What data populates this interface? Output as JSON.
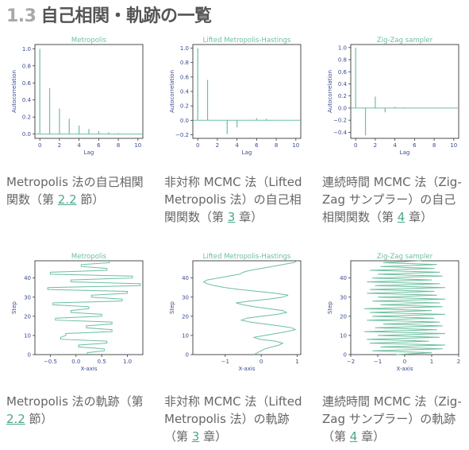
{
  "heading": {
    "number": "1.3",
    "title": "自己相関・軌跡の一覧"
  },
  "colors": {
    "line": "#6cbf9f",
    "tick_text": "#3b4a8f",
    "link": "#4aa890"
  },
  "chart_data": [
    {
      "type": "bar",
      "title": "Metropolis",
      "xlabel": "Lag",
      "ylabel": "Autocorrelation",
      "xlim": [
        -0.5,
        10.5
      ],
      "ylim": [
        -0.05,
        1.05
      ],
      "xticks": [
        "0",
        "2",
        "4",
        "6",
        "8",
        "10"
      ],
      "yticks": [
        "0.0",
        "0.2",
        "0.4",
        "0.6",
        "0.8",
        "1.0"
      ],
      "x": [
        0,
        1,
        2,
        3,
        4,
        5,
        6,
        7,
        8,
        9,
        10
      ],
      "values": [
        1.0,
        0.54,
        0.3,
        0.18,
        0.1,
        0.06,
        0.035,
        0.02,
        0.012,
        0.006,
        0.003
      ]
    },
    {
      "type": "bar",
      "title": "Lifted Metropolis-Hastings",
      "xlabel": "Lag",
      "ylabel": "Autocorrelation",
      "xlim": [
        -0.5,
        10.5
      ],
      "ylim": [
        -0.25,
        1.05
      ],
      "xticks": [
        "0",
        "2",
        "4",
        "6",
        "8",
        "10"
      ],
      "yticks": [
        "−0.2",
        "0.0",
        "0.2",
        "0.4",
        "0.6",
        "0.8",
        "1.0"
      ],
      "x": [
        0,
        1,
        2,
        3,
        4,
        5,
        6,
        7,
        8,
        9,
        10
      ],
      "values": [
        1.0,
        0.56,
        0.0,
        -0.19,
        -0.1,
        0.0,
        0.03,
        0.02,
        0.0,
        0.0,
        0.0
      ]
    },
    {
      "type": "bar",
      "title": "Zig-Zag sampler",
      "xlabel": "Lag",
      "ylabel": "Autocorrelation",
      "xlim": [
        -0.5,
        10.5
      ],
      "ylim": [
        -0.5,
        1.05
      ],
      "xticks": [
        "0",
        "2",
        "4",
        "6",
        "8",
        "10"
      ],
      "yticks": [
        "−0.4",
        "−0.2",
        "0.0",
        "0.2",
        "0.4",
        "0.6",
        "0.8",
        "1.0"
      ],
      "x": [
        0,
        1,
        2,
        3,
        4,
        5,
        6,
        7,
        8,
        9,
        10
      ],
      "values": [
        1.0,
        -0.45,
        0.19,
        -0.07,
        0.02,
        -0.01,
        0.0,
        0.0,
        0.005,
        0.0,
        0.0
      ]
    },
    {
      "type": "line",
      "title": "Metropolis",
      "xlabel": "X-axis",
      "ylabel": "Step",
      "xlim": [
        -0.8,
        1.3
      ],
      "ylim": [
        0,
        49
      ],
      "xticks": [
        "−0.5",
        "0.0",
        "0.5",
        "1.0"
      ],
      "xtick_values": [
        -0.5,
        0,
        0.5,
        1.0
      ],
      "yticks": [
        "0",
        "10",
        "20",
        "30",
        "40"
      ],
      "x": [
        0.22,
        0.22,
        0.55,
        0.55,
        0.05,
        0.05,
        0.6,
        0.6,
        -0.3,
        -0.3,
        -0.2,
        -0.2,
        0.7,
        0.7,
        0.2,
        0.2,
        0.7,
        0.7,
        -0.4,
        -0.4,
        0.5,
        0.5,
        -0.1,
        -0.1,
        0.25,
        0.25,
        -0.45,
        -0.45,
        0.9,
        0.9,
        0.3,
        0.3,
        1.0,
        1.0,
        -0.55,
        -0.55,
        1.25,
        1.25,
        -0.1,
        -0.1,
        1.1,
        1.1,
        -0.5,
        -0.5,
        0.6,
        0.6,
        0.1,
        0.1,
        0.65,
        0.65
      ],
      "y": [
        0,
        1,
        2,
        3,
        4,
        5,
        6,
        7,
        8,
        9,
        10,
        11,
        12,
        13,
        14,
        15,
        16,
        17,
        18,
        19,
        20,
        21,
        22,
        23,
        24,
        25,
        26,
        27,
        28,
        29,
        30,
        31,
        32,
        33,
        34,
        35,
        36,
        37,
        38,
        39,
        40,
        41,
        42,
        43,
        44,
        45,
        46,
        47,
        48,
        49
      ]
    },
    {
      "type": "line",
      "title": "Lifted Metropolis-Hastings",
      "xlabel": "X-axis",
      "ylabel": "Step",
      "xlim": [
        -1.9,
        1.1
      ],
      "ylim": [
        0,
        49
      ],
      "xticks": [
        "−1",
        "0",
        "1"
      ],
      "xtick_values": [
        -1,
        0,
        1
      ],
      "yticks": [
        "0",
        "10",
        "20",
        "30",
        "40"
      ],
      "x": [
        -0.2,
        -0.1,
        0.0,
        0.1,
        0.3,
        0.5,
        0.6,
        0.4,
        -0.05,
        -0.2,
        0.1,
        0.4,
        0.7,
        0.95,
        0.85,
        0.5,
        0.1,
        -0.3,
        -0.55,
        -0.4,
        0.0,
        0.45,
        0.7,
        0.6,
        0.2,
        -0.2,
        -0.5,
        -0.7,
        -0.3,
        0.2,
        0.6,
        0.75,
        0.4,
        -0.1,
        -0.6,
        -1.0,
        -1.3,
        -1.5,
        -1.6,
        -1.5,
        -1.2,
        -0.9,
        -0.6,
        -0.5,
        -0.3,
        0.0,
        0.3,
        0.6,
        0.9,
        1.0
      ],
      "y": [
        0,
        1,
        2,
        3,
        4,
        5,
        6,
        7,
        8,
        9,
        10,
        11,
        12,
        13,
        14,
        15,
        16,
        17,
        18,
        19,
        20,
        21,
        22,
        23,
        24,
        25,
        26,
        27,
        28,
        29,
        30,
        31,
        32,
        33,
        34,
        35,
        36,
        37,
        38,
        39,
        40,
        41,
        42,
        43,
        44,
        45,
        46,
        47,
        48,
        49
      ]
    },
    {
      "type": "line",
      "title": "Zig-Zag sampler",
      "xlabel": "X-axis",
      "ylabel": "Step",
      "xlim": [
        -2,
        2
      ],
      "ylim": [
        0,
        49
      ],
      "xticks": [
        "−2",
        "−1",
        "0",
        "1",
        "2"
      ],
      "xtick_values": [
        -2,
        -1,
        0,
        1,
        2
      ],
      "yticks": [
        "0",
        "10",
        "20",
        "30",
        "40"
      ],
      "x": [
        -0.3,
        1.0,
        -1.2,
        1.4,
        -0.9,
        1.5,
        -1.3,
        0.9,
        -1.4,
        1.3,
        -1.0,
        1.5,
        -1.5,
        1.2,
        -1.1,
        1.4,
        -0.8,
        1.3,
        -1.4,
        1.1,
        -1.2,
        1.5,
        -1.3,
        1.0,
        -1.5,
        1.4,
        -0.9,
        1.3,
        -1.2,
        1.5,
        -1.0,
        1.2,
        -1.4,
        1.1,
        -1.3,
        1.5,
        -1.1,
        1.3,
        -1.4,
        1.0,
        -1.2,
        1.4,
        -1.0,
        1.3,
        -1.3,
        1.1,
        -0.9,
        1.2,
        -0.8,
        0.6
      ],
      "y": [
        0,
        1,
        2,
        3,
        4,
        5,
        6,
        7,
        8,
        9,
        10,
        11,
        12,
        13,
        14,
        15,
        16,
        17,
        18,
        19,
        20,
        21,
        22,
        23,
        24,
        25,
        26,
        27,
        28,
        29,
        30,
        31,
        32,
        33,
        34,
        35,
        36,
        37,
        38,
        39,
        40,
        41,
        42,
        43,
        44,
        45,
        46,
        47,
        48,
        49
      ]
    }
  ],
  "captions": [
    {
      "pre": "Metropolis 法の自己相関関数（第 ",
      "ref": "2.2",
      "post": " 節）"
    },
    {
      "pre": "非対称 MCMC 法（Lifted Metropolis 法）の自己相関関数（第 ",
      "ref": "3",
      "post": " 章）"
    },
    {
      "pre": "連続時間 MCMC 法（Zig-Zag サンプラー）の自己相関関数（第 ",
      "ref": "4",
      "post": " 章）"
    },
    {
      "pre": "Metropolis 法の軌跡（第 ",
      "ref": "2.2",
      "post": " 節）"
    },
    {
      "pre": "非対称 MCMC 法（Lifted Metropolis 法）の軌跡（第 ",
      "ref": "3",
      "post": " 章）"
    },
    {
      "pre": "連続時間 MCMC 法（Zig-Zag サンプラー）の軌跡（第 ",
      "ref": "4",
      "post": " 章）"
    }
  ]
}
